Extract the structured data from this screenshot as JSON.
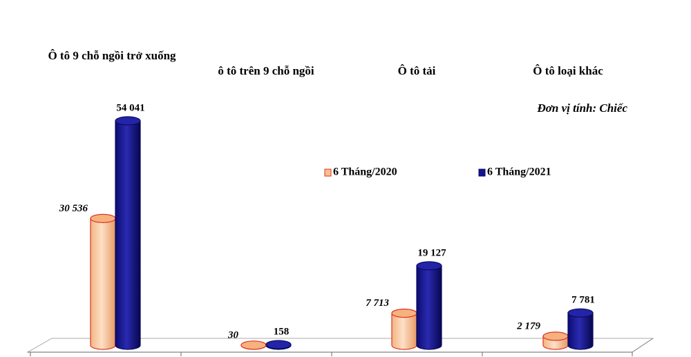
{
  "chart_data": {
    "type": "bar",
    "unit_note": "Đơn vị tính: Chiếc",
    "categories": [
      "Ô tô 9 chỗ ngồi trở xuống",
      "ô tô trên 9 chỗ ngồi",
      "Ô tô tải",
      "Ô tô loại khác"
    ],
    "series": [
      {
        "name": "6 Tháng/2020",
        "color": "#f8c090",
        "values": [
          30536,
          30,
          7713,
          2179
        ],
        "value_labels": [
          "30 536",
          "30",
          "7 713",
          "2 179"
        ]
      },
      {
        "name": "6 Tháng/2021",
        "color": "#141490",
        "values": [
          54041,
          158,
          19127,
          7781
        ],
        "value_labels": [
          "54 041",
          "158",
          "19 127",
          "7 781"
        ]
      }
    ]
  }
}
